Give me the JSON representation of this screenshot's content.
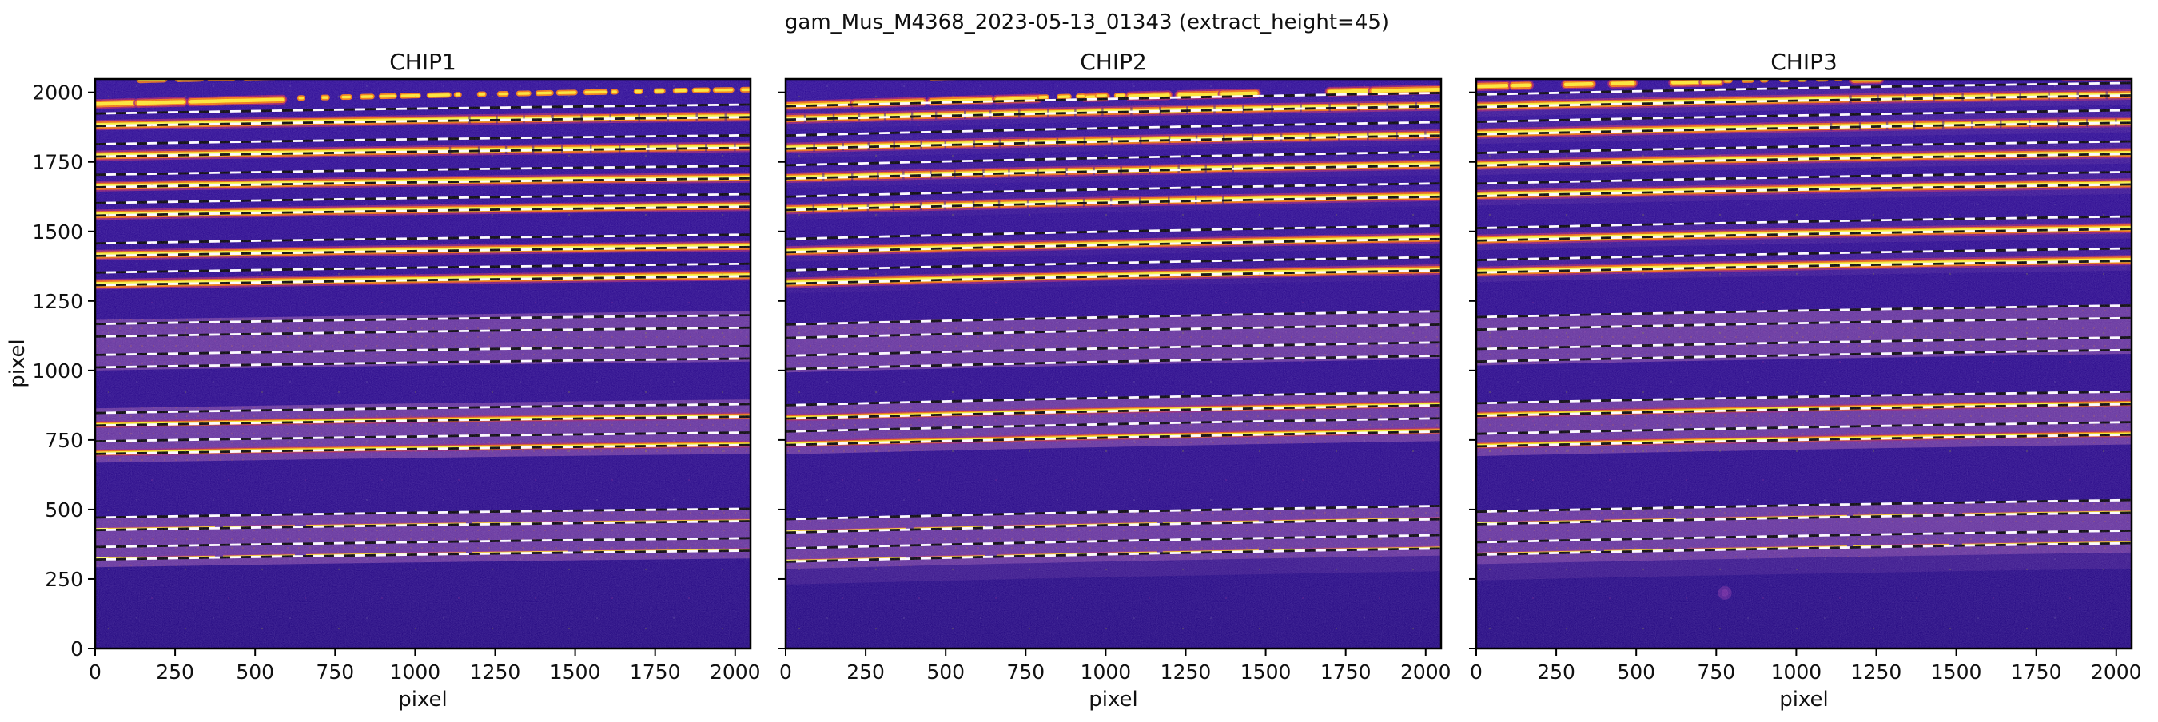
{
  "chart_data": {
    "type": "heatmap",
    "suptitle": "gam_Mus_M4368_2023-05-13_01343  (extract_height=45)",
    "xlabel": "pixel",
    "ylabel": "pixel",
    "xlim": [
      0,
      2048
    ],
    "ylim": [
      0,
      2048
    ],
    "xticks": [
      0,
      250,
      500,
      750,
      1000,
      1250,
      1500,
      1750,
      2000
    ],
    "yticks": [
      0,
      250,
      500,
      750,
      1000,
      1250,
      1500,
      1750,
      2000
    ],
    "extract_height": 45,
    "colors": {
      "background_top": "#2f0d97",
      "background_mid": "#2b0a8e",
      "background_bottom": "#230880",
      "purple_band": "#6b3a9e",
      "halo_purple": "#53279a",
      "band_fringe_outer": "#9c2374",
      "band_fringe_orange": "#ec6a12",
      "band_core_yellow": "#f6ec27",
      "band_core_hot": "#fdf95c",
      "topband_outer": "#a81f66",
      "topband_orange": "#f2790e",
      "topband_core": "#ffe92e",
      "dash_white": "#ffffff",
      "dash_black": "#050505",
      "notch": "#38127e",
      "speck_orange": "#c87034",
      "speck_pink": "#c050a0",
      "artifact_dot": "#8b35a8",
      "frame": "#000000"
    },
    "notch_base_xs": [
      60,
      150,
      230,
      310,
      395,
      470,
      560,
      640,
      730,
      820,
      905,
      990,
      1080,
      1170,
      1255,
      1340,
      1430,
      1520,
      1610,
      1700,
      1790,
      1880,
      1970
    ],
    "panels": [
      {
        "title": "CHIP1",
        "rise": 32,
        "boundary_offset": 42,
        "halo": 0,
        "top_band": {
          "y": 1958,
          "rise": 48,
          "segments": [
            [
              0,
              120
            ],
            [
              135,
              275
            ],
            [
              300,
              585
            ]
          ],
          "beads": {
            "range": [
              640,
              2048
            ],
            "dash": "3 26 5 20 8 16 12 12 16 10 20 14 24 10"
          },
          "edge_blobs": [
            [
              140,
              215
            ],
            [
              260,
              330
            ],
            [
              360,
              430
            ],
            [
              470,
              560
            ]
          ],
          "edge_y": 2042
        },
        "orders": [
          {
            "c": 1882,
            "type": "bright",
            "notches": "right"
          },
          {
            "c": 1772,
            "type": "bright",
            "notches": "right"
          },
          {
            "c": 1662,
            "type": "bright",
            "notches": "none"
          },
          {
            "c": 1560,
            "type": "bright",
            "notches": "none"
          },
          {
            "c": 1415,
            "type": "bright",
            "notches": "none"
          },
          {
            "c": 1310,
            "type": "bright",
            "notches": "none"
          },
          {
            "c": 1125,
            "type": "hidden",
            "notches": "none"
          },
          {
            "c": 1014,
            "type": "hidden",
            "notches": "none"
          },
          {
            "c": 805,
            "type": "medium",
            "notches": "none"
          },
          {
            "c": 703,
            "type": "medium",
            "notches": "none"
          },
          {
            "c": 429,
            "type": "thin",
            "notches": "none"
          },
          {
            "c": 323,
            "type": "thin",
            "notches": "none"
          }
        ],
        "purple_bands": [
          [
            1000,
            1182
          ],
          [
            668,
            864
          ],
          [
            292,
            468
          ]
        ],
        "haze_below": null,
        "artifact_dot": null
      },
      {
        "title": "CHIP2",
        "rise": 48,
        "boundary_offset": 45,
        "halo": 0.22,
        "top_band": {
          "y": 1952,
          "rise": 58,
          "segments": [
            [
              0,
              200
            ],
            [
              215,
              428
            ],
            [
              455,
              640
            ],
            [
              660,
              788
            ],
            [
              935,
              1000
            ],
            [
              1075,
              1195
            ],
            [
              1230,
              1355
            ],
            [
              1365,
              1470
            ],
            [
              1700,
              1820
            ],
            [
              1835,
              2048
            ]
          ],
          "beads": {
            "range": [
              795,
              1070
            ],
            "dash": "8 16 12 12 6 18 10 14"
          },
          "edge_blobs": [
            [
              455,
              560
            ],
            [
              1660,
              1740
            ]
          ],
          "edge_y": 2040
        },
        "orders": [
          {
            "c": 1905,
            "type": "bright",
            "notches": "all"
          },
          {
            "c": 1800,
            "type": "bright",
            "notches": "all"
          },
          {
            "c": 1693,
            "type": "bright",
            "notches": "left"
          },
          {
            "c": 1580,
            "type": "bright",
            "notches": "left"
          },
          {
            "c": 1428,
            "type": "bright",
            "notches": "none"
          },
          {
            "c": 1315,
            "type": "bright",
            "notches": "none"
          },
          {
            "c": 1120,
            "type": "hidden",
            "notches": "none"
          },
          {
            "c": 1008,
            "type": "hidden",
            "notches": "none"
          },
          {
            "c": 830,
            "type": "medium",
            "notches": "none"
          },
          {
            "c": 735,
            "type": "medium",
            "notches": "none"
          },
          {
            "c": 420,
            "type": "thin",
            "notches": "none"
          },
          {
            "c": 315,
            "type": "thin",
            "notches": "none"
          }
        ],
        "purple_bands": [
          [
            993,
            1170
          ],
          [
            698,
            877
          ],
          [
            286,
            462
          ]
        ],
        "haze_below": [
          230,
          286
        ],
        "artifact_dot": null
      },
      {
        "title": "CHIP3",
        "rise": 42,
        "boundary_offset": 42,
        "halo": 0.4,
        "top_band": {
          "y": 2022,
          "rise": 38,
          "segments": [
            [
              0,
              95
            ],
            [
              115,
              165
            ],
            [
              280,
              360
            ],
            [
              425,
              490
            ],
            [
              615,
              700
            ],
            [
              710,
              760
            ],
            [
              1180,
              1260
            ],
            [
              1840,
              2048
            ]
          ],
          "beads": {
            "range": [
              780,
              1150
            ],
            "dash": "5 18 9 14 4 20 7 16"
          },
          "edge_blobs": [],
          "edge_y": 2042
        },
        "orders": [
          {
            "c": 1950,
            "type": "bright",
            "notches": "right"
          },
          {
            "c": 1852,
            "type": "bright",
            "notches": "right"
          },
          {
            "c": 1740,
            "type": "bright",
            "notches": "none"
          },
          {
            "c": 1630,
            "type": "bright",
            "notches": "none"
          },
          {
            "c": 1470,
            "type": "bright",
            "notches": "none"
          },
          {
            "c": 1355,
            "type": "bright",
            "notches": "none"
          },
          {
            "c": 1150,
            "type": "hidden",
            "notches": "none"
          },
          {
            "c": 1035,
            "type": "hidden",
            "notches": "none"
          },
          {
            "c": 840,
            "type": "medium",
            "notches": "none"
          },
          {
            "c": 730,
            "type": "medium",
            "notches": "none"
          },
          {
            "c": 450,
            "type": "thin",
            "notches": "none"
          },
          {
            "c": 340,
            "type": "thin",
            "notches": "none"
          }
        ],
        "purple_bands": [
          [
            1018,
            1196
          ],
          [
            692,
            884
          ],
          [
            303,
            492
          ]
        ],
        "haze_below": [
          245,
          303
        ],
        "artifact_dot": {
          "x": 777,
          "y": 200
        }
      }
    ]
  }
}
